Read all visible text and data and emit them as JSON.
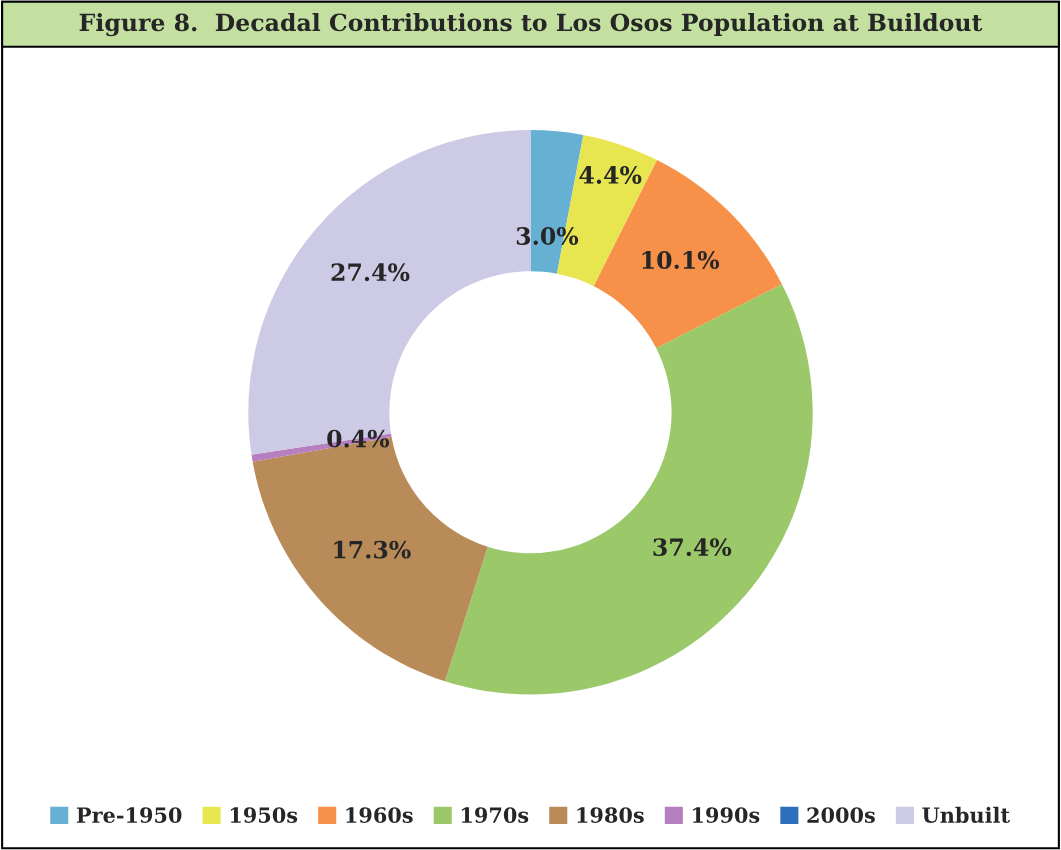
{
  "chart_data": {
    "type": "donut",
    "title": "Figure 8.  Decadal Contributions to Los Osos Population at Buildout",
    "categories": [
      "Pre-1950",
      "1950s",
      "1960s",
      "1970s",
      "1980s",
      "1990s",
      "2000s",
      "Unbuilt"
    ],
    "values": [
      3.0,
      4.4,
      10.1,
      37.4,
      17.3,
      0.4,
      0,
      27.4
    ],
    "value_labels": [
      "3.0%",
      "4.4%",
      "10.1%",
      "37.4%",
      "17.3%",
      "0.4%",
      null,
      "27.4%"
    ],
    "colors": [
      "#66b0d3",
      "#e8e650",
      "#f79149",
      "#9bc869",
      "#b98b59",
      "#b57fc0",
      "#2c6fbf",
      "#cdcae6"
    ],
    "legend": "bottom"
  }
}
